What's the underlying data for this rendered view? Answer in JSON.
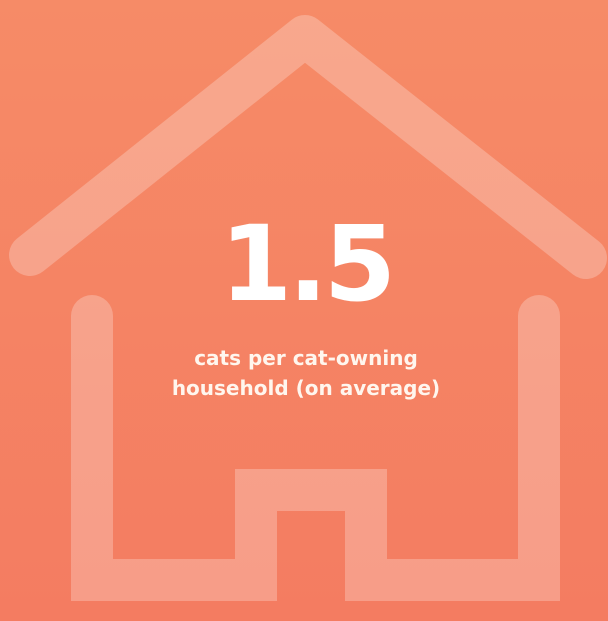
{
  "stat": {
    "value": "1.5",
    "label_lines": [
      "cats per cat-owning",
      "household (on average)"
    ]
  }
}
